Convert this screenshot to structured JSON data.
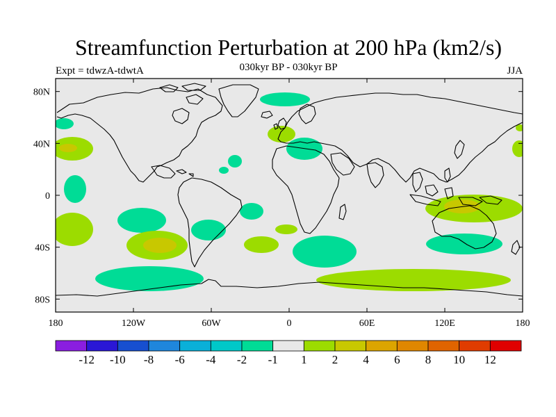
{
  "title": "Streamfunction Perturbation at 200 hPa (km2/s)",
  "subtitle": "030kyr BP - 030kyr BP",
  "left_label": "Expt = tdwzA-tdwtA",
  "right_label": "JJA",
  "map": {
    "lon_range": [
      -180,
      180
    ],
    "lat_range": [
      -90,
      90
    ],
    "x_tick_labels": [
      "180",
      "120W",
      "60W",
      "0",
      "60E",
      "120E",
      "180"
    ],
    "y_tick_labels": [
      "80N",
      "40N",
      "0",
      "40S",
      "80S"
    ],
    "background_color": "#e8e8e8",
    "coastline_color": "#000000"
  },
  "colorbar": {
    "colors": [
      "#8a1ee0",
      "#2a17d6",
      "#174fd0",
      "#1f86dc",
      "#0ab0d8",
      "#00c8c8",
      "#00dc96",
      "#e8e8e8",
      "#9cdc00",
      "#c8c800",
      "#dca500",
      "#e08700",
      "#e06400",
      "#e03c00",
      "#e00000"
    ],
    "labels": [
      "-12",
      "-10",
      "-8",
      "-6",
      "-4",
      "-2",
      "-1",
      "1",
      "2",
      "4",
      "6",
      "8",
      "10",
      "12"
    ]
  }
}
